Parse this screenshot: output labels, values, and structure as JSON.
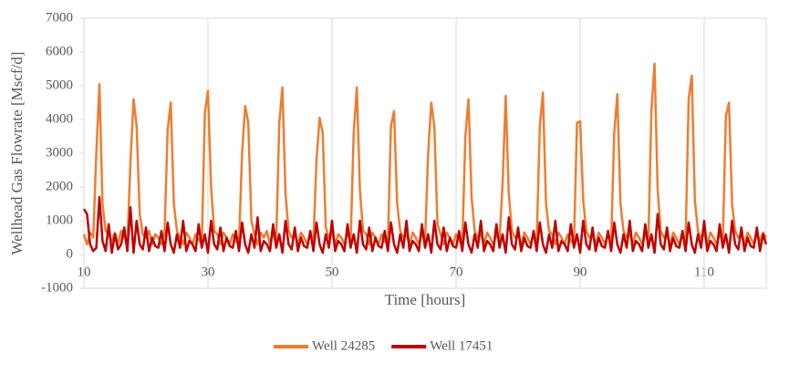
{
  "chart_data": {
    "type": "line",
    "x_label": "Time [hours]",
    "y_label": "Wellhead Gas Flowrate [Mscf/d]",
    "x": [
      10,
      10.5,
      11,
      11.5,
      12,
      12.5,
      13,
      13.5,
      14,
      14.5,
      15,
      15.5,
      16,
      16.5,
      17,
      17.5,
      18,
      18.5,
      19,
      19.5,
      20,
      20.5,
      21,
      21.5,
      22,
      22.5,
      23,
      23.5,
      24,
      24.5,
      25,
      25.5,
      26,
      26.5,
      27,
      27.5,
      28,
      28.5,
      29,
      29.5,
      30,
      30.5,
      31,
      31.5,
      32,
      32.5,
      33,
      33.5,
      34,
      34.5,
      35,
      35.5,
      36,
      36.5,
      37,
      37.5,
      38,
      38.5,
      39,
      39.5,
      40,
      40.5,
      41,
      41.5,
      42,
      42.5,
      43,
      43.5,
      44,
      44.5,
      45,
      45.5,
      46,
      46.5,
      47,
      47.5,
      48,
      48.5,
      49,
      49.5,
      50,
      50.5,
      51,
      51.5,
      52,
      52.5,
      53,
      53.5,
      54,
      54.5,
      55,
      55.5,
      56,
      56.5,
      57,
      57.5,
      58,
      58.5,
      59,
      59.5,
      60,
      60.5,
      61,
      61.5,
      62,
      62.5,
      63,
      63.5,
      64,
      64.5,
      65,
      65.5,
      66,
      66.5,
      67,
      67.5,
      68,
      68.5,
      69,
      69.5,
      70,
      70.5,
      71,
      71.5,
      72,
      72.5,
      73,
      73.5,
      74,
      74.5,
      75,
      75.5,
      76,
      76.5,
      77,
      77.5,
      78,
      78.5,
      79,
      79.5,
      80,
      80.5,
      81,
      81.5,
      82,
      82.5,
      83,
      83.5,
      84,
      84.5,
      85,
      85.5,
      86,
      86.5,
      87,
      87.5,
      88,
      88.5,
      89,
      89.5,
      90,
      90.5,
      91,
      91.5,
      92,
      92.5,
      93,
      93.5,
      94,
      94.5,
      95,
      95.5,
      96,
      96.5,
      97,
      97.5,
      98,
      98.5,
      99,
      99.5,
      100,
      100.5,
      101,
      101.5,
      102,
      102.5,
      103,
      103.5,
      104,
      104.5,
      105,
      105.5,
      106,
      106.5,
      107,
      107.5,
      108,
      108.5,
      109,
      109.5,
      110,
      110.5,
      111,
      111.5,
      112,
      112.5,
      113,
      113.5,
      114,
      114.5,
      115,
      115.5,
      116,
      116.5,
      117,
      117.5,
      118,
      118.5,
      119,
      119.5,
      120
    ],
    "series": [
      {
        "name": "Well 24285",
        "color": "#ed7d31",
        "values": [
          600,
          300,
          650,
          500,
          3000,
          5050,
          1500,
          700,
          600,
          400,
          650,
          300,
          700,
          500,
          300,
          2700,
          4600,
          3800,
          1200,
          600,
          500,
          700,
          300,
          600,
          500,
          300,
          650,
          3700,
          4500,
          1500,
          700,
          500,
          300,
          650,
          500,
          300,
          600,
          450,
          300,
          4200,
          4850,
          2000,
          700,
          600,
          300,
          650,
          500,
          300,
          600,
          400,
          300,
          3000,
          4400,
          3900,
          1000,
          600,
          300,
          650,
          500,
          700,
          300,
          600,
          400,
          3900,
          4950,
          1800,
          700,
          500,
          600,
          300,
          650,
          500,
          300,
          600,
          400,
          2800,
          4050,
          3600,
          800,
          500,
          650,
          300,
          600,
          500,
          300,
          650,
          400,
          3600,
          4950,
          1900,
          700,
          600,
          300,
          650,
          500,
          300,
          600,
          400,
          300,
          3800,
          4250,
          1500,
          700,
          500,
          600,
          300,
          650,
          500,
          300,
          600,
          400,
          3000,
          4500,
          3800,
          900,
          600,
          300,
          650,
          500,
          300,
          600,
          400,
          300,
          3500,
          4600,
          1700,
          700,
          500,
          600,
          300,
          650,
          500,
          300,
          600,
          400,
          2100,
          4700,
          1800,
          700,
          500,
          600,
          300,
          650,
          500,
          300,
          600,
          400,
          3800,
          4800,
          1500,
          700,
          600,
          300,
          650,
          500,
          300,
          600,
          400,
          300,
          3900,
          3950,
          1600,
          700,
          500,
          600,
          300,
          650,
          500,
          300,
          600,
          400,
          3600,
          4750,
          1500,
          700,
          500,
          600,
          300,
          650,
          500,
          300,
          600,
          400,
          4300,
          5650,
          1900,
          700,
          500,
          600,
          300,
          650,
          500,
          300,
          600,
          400,
          4600,
          5300,
          1600,
          700,
          500,
          600,
          300,
          650,
          500,
          300,
          600,
          400,
          4100,
          4500,
          1500,
          700,
          500,
          600,
          300,
          650,
          500,
          300,
          600,
          400,
          650,
          500
        ]
      },
      {
        "name": "Well 17451",
        "color": "#c00000",
        "values": [
          1350,
          1200,
          300,
          100,
          200,
          1700,
          400,
          100,
          900,
          50,
          600,
          150,
          300,
          800,
          100,
          1400,
          50,
          1000,
          300,
          150,
          800,
          100,
          500,
          250,
          200,
          700,
          100,
          950,
          300,
          50,
          600,
          200,
          1000,
          100,
          400,
          300,
          100,
          900,
          200,
          600,
          50,
          1000,
          300,
          150,
          800,
          100,
          500,
          250,
          200,
          700,
          100,
          950,
          300,
          50,
          600,
          200,
          1100,
          100,
          400,
          300,
          100,
          900,
          200,
          600,
          50,
          1000,
          300,
          150,
          800,
          100,
          500,
          250,
          200,
          700,
          100,
          950,
          300,
          50,
          600,
          200,
          1000,
          100,
          400,
          300,
          100,
          900,
          200,
          600,
          50,
          1000,
          300,
          150,
          800,
          100,
          500,
          250,
          200,
          700,
          100,
          950,
          300,
          50,
          600,
          200,
          1000,
          100,
          400,
          300,
          100,
          900,
          200,
          600,
          50,
          1000,
          300,
          150,
          800,
          100,
          500,
          250,
          200,
          700,
          100,
          950,
          300,
          50,
          600,
          200,
          1000,
          100,
          400,
          300,
          100,
          900,
          200,
          600,
          50,
          1100,
          300,
          150,
          800,
          100,
          500,
          250,
          200,
          700,
          100,
          950,
          300,
          50,
          600,
          200,
          1000,
          100,
          400,
          300,
          100,
          900,
          200,
          600,
          50,
          1000,
          300,
          150,
          800,
          100,
          500,
          250,
          200,
          700,
          100,
          950,
          300,
          50,
          600,
          200,
          1000,
          100,
          400,
          300,
          100,
          900,
          200,
          600,
          50,
          1200,
          300,
          150,
          800,
          100,
          500,
          250,
          200,
          700,
          100,
          950,
          300,
          50,
          600,
          200,
          1000,
          100,
          400,
          300,
          100,
          900,
          200,
          600,
          50,
          1000,
          300,
          150,
          800,
          100,
          500,
          250,
          200,
          800,
          100,
          600,
          300
        ]
      }
    ],
    "xlim": [
      10,
      120
    ],
    "ylim": [
      -1000,
      7000
    ],
    "xticks": [
      10,
      30,
      50,
      70,
      90,
      110
    ],
    "yticks": [
      -1000,
      0,
      1000,
      2000,
      3000,
      4000,
      5000,
      6000,
      7000
    ],
    "grid": true,
    "legend": "bottom"
  }
}
